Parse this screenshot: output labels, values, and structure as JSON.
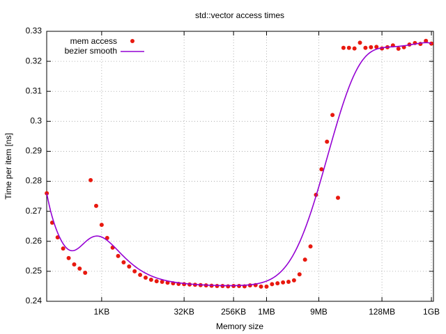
{
  "chart_data": {
    "type": "scatter",
    "title": "std::vector access times",
    "xlabel": "Memory size",
    "ylabel": "Time per item [ns]",
    "xlog": true,
    "grid": true,
    "legend": "top-left",
    "xlim": [
      101.6,
      1170000000
    ],
    "ylim": [
      0.24,
      0.33
    ],
    "xticks": [
      {
        "value": 1024,
        "label": "1KB"
      },
      {
        "value": 32768,
        "label": "32KB"
      },
      {
        "value": 262144,
        "label": "256KB"
      },
      {
        "value": 1048576,
        "label": "1MB"
      },
      {
        "value": 9437184,
        "label": "9MB"
      },
      {
        "value": 134217728,
        "label": "128MB"
      },
      {
        "value": 1073741824,
        "label": "1GB"
      }
    ],
    "yticks": [
      0.24,
      0.25,
      0.26,
      0.27,
      0.28,
      0.29,
      0.3,
      0.31,
      0.32,
      0.33
    ],
    "x": [
      102,
      128,
      161,
      203,
      256,
      323,
      406,
      512,
      645,
      813,
      1024,
      1290,
      1625,
      2048,
      2580,
      3251,
      4096,
      5161,
      6502,
      8192,
      10321,
      13004,
      16384,
      20643,
      26008,
      32768,
      41285,
      52016,
      65536,
      82570,
      104032,
      131072,
      165140,
      208064,
      262144,
      330281,
      416127,
      524288,
      660562,
      832255,
      1048576,
      1321123,
      1664510,
      2097152,
      2642246,
      3329020,
      4194304,
      5284492,
      6658040,
      8388608,
      10568985,
      13316079,
      16777216,
      21137970,
      26632159,
      33554432,
      42275939,
      53264317,
      67108864,
      84551878,
      106528635,
      134217728,
      169103756,
      213057269,
      268435456,
      338207512,
      426114538,
      536870912,
      676415024,
      852229076,
      1073741824
    ],
    "series": [
      {
        "name": "mem access",
        "color": "#e8190f",
        "style": "points",
        "values": [
          0.276,
          0.2662,
          0.2613,
          0.2576,
          0.2544,
          0.2523,
          0.2509,
          0.2495,
          0.2804,
          0.2718,
          0.2655,
          0.2611,
          0.2579,
          0.2551,
          0.253,
          0.2516,
          0.25,
          0.2488,
          0.2479,
          0.2472,
          0.2467,
          0.2465,
          0.2462,
          0.246,
          0.2458,
          0.2457,
          0.2456,
          0.2455,
          0.2454,
          0.2453,
          0.2452,
          0.2451,
          0.2451,
          0.245,
          0.2451,
          0.2451,
          0.245,
          0.2453,
          0.2454,
          0.2449,
          0.2449,
          0.2457,
          0.246,
          0.2463,
          0.2465,
          0.247,
          0.249,
          0.2539,
          0.2583,
          0.2755,
          0.284,
          0.2932,
          0.3021,
          0.2745,
          0.3245,
          0.3245,
          0.3243,
          0.3262,
          0.3245,
          0.3247,
          0.3248,
          0.3243,
          0.3247,
          0.3253,
          0.3242,
          0.3247,
          0.3256,
          0.3261,
          0.3258,
          0.3268,
          0.3259
        ]
      },
      {
        "name": "bezier smooth",
        "color": "#9400d3",
        "style": "bezier"
      }
    ]
  }
}
